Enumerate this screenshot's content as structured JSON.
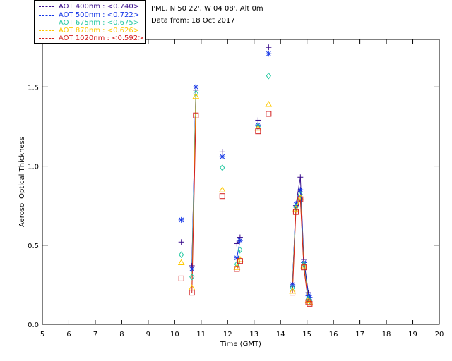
{
  "header": {
    "site_line": "PML, N 50 22', W 04 08', Alt 0m",
    "date_line": "Data from: 18 Oct 2017"
  },
  "legend": [
    {
      "label": "AOT  400nm : <0.740>",
      "color": "#3a0d8c"
    },
    {
      "label": "AOT  500nm : <0.722>",
      "color": "#1436e6"
    },
    {
      "label": "AOT  675nm : <0.675>",
      "color": "#22c8a0"
    },
    {
      "label": "AOT  870nm : <0.626>",
      "color": "#ffc800"
    },
    {
      "label": "AOT 1020nm : <0.592>",
      "color": "#d21e1e"
    }
  ],
  "chart_data": {
    "type": "line",
    "xlabel": "Time (GMT)",
    "ylabel": "Aerosol Optical Thickness",
    "xlim": [
      5,
      20
    ],
    "ylim": [
      0.0,
      1.8
    ],
    "xticks": [
      5,
      6,
      7,
      8,
      9,
      10,
      11,
      12,
      13,
      14,
      15,
      16,
      17,
      18,
      19,
      20
    ],
    "yticks": [
      0.0,
      0.5,
      1.0,
      1.5
    ],
    "ytick_labels": [
      "0.0",
      "0.5",
      "1.0",
      "1.5"
    ],
    "series": [
      {
        "name": "AOT  400nm : <0.740>",
        "marker": "plus",
        "color": "#3a0d8c",
        "points": [
          [
            10.25,
            0.52
          ],
          [
            10.65,
            0.37
          ],
          [
            10.8,
            1.48
          ],
          [
            11.8,
            1.09
          ],
          [
            12.35,
            0.51
          ],
          [
            12.47,
            0.55
          ],
          [
            13.15,
            1.29
          ],
          [
            13.55,
            1.75
          ],
          [
            14.45,
            0.25
          ],
          [
            14.58,
            0.75
          ],
          [
            14.75,
            0.93
          ],
          [
            14.88,
            0.41
          ],
          [
            15.05,
            0.2
          ],
          [
            15.1,
            0.17
          ]
        ],
        "lines": [
          [
            [
              10.65,
              0.37
            ],
            [
              10.8,
              1.48
            ]
          ],
          [
            [
              12.35,
              0.51
            ],
            [
              12.47,
              0.55
            ]
          ],
          [
            [
              14.45,
              0.25
            ],
            [
              14.58,
              0.75
            ],
            [
              14.75,
              0.93
            ],
            [
              14.88,
              0.41
            ],
            [
              15.05,
              0.2
            ],
            [
              15.1,
              0.17
            ]
          ]
        ]
      },
      {
        "name": "AOT  500nm : <0.722>",
        "marker": "asterisk",
        "color": "#1436e6",
        "points": [
          [
            10.25,
            0.66
          ],
          [
            10.65,
            0.35
          ],
          [
            10.8,
            1.5
          ],
          [
            11.8,
            1.06
          ],
          [
            12.35,
            0.42
          ],
          [
            12.47,
            0.53
          ],
          [
            13.15,
            1.26
          ],
          [
            13.55,
            1.71
          ],
          [
            14.45,
            0.25
          ],
          [
            14.58,
            0.76
          ],
          [
            14.75,
            0.85
          ],
          [
            14.88,
            0.39
          ],
          [
            15.05,
            0.18
          ],
          [
            15.1,
            0.17
          ]
        ],
        "lines": [
          [
            [
              10.65,
              0.35
            ],
            [
              10.8,
              1.5
            ]
          ],
          [
            [
              12.35,
              0.42
            ],
            [
              12.47,
              0.53
            ]
          ],
          [
            [
              14.45,
              0.25
            ],
            [
              14.58,
              0.76
            ],
            [
              14.75,
              0.85
            ],
            [
              14.88,
              0.39
            ],
            [
              15.05,
              0.18
            ],
            [
              15.1,
              0.17
            ]
          ]
        ]
      },
      {
        "name": "AOT  675nm : <0.675>",
        "marker": "diamond",
        "color": "#22c8a0",
        "points": [
          [
            10.25,
            0.44
          ],
          [
            10.65,
            0.3
          ],
          [
            10.8,
            1.46
          ],
          [
            11.8,
            0.99
          ],
          [
            12.35,
            0.38
          ],
          [
            12.47,
            0.47
          ],
          [
            13.15,
            1.25
          ],
          [
            13.55,
            1.57
          ],
          [
            14.45,
            0.23
          ],
          [
            14.58,
            0.74
          ],
          [
            14.75,
            0.82
          ],
          [
            14.88,
            0.38
          ],
          [
            15.05,
            0.16
          ],
          [
            15.1,
            0.15
          ]
        ],
        "lines": [
          [
            [
              10.65,
              0.3
            ],
            [
              10.8,
              1.46
            ]
          ],
          [
            [
              12.35,
              0.38
            ],
            [
              12.47,
              0.47
            ]
          ],
          [
            [
              14.45,
              0.23
            ],
            [
              14.58,
              0.74
            ],
            [
              14.75,
              0.82
            ],
            [
              14.88,
              0.38
            ],
            [
              15.05,
              0.16
            ],
            [
              15.1,
              0.15
            ]
          ]
        ]
      },
      {
        "name": "AOT  870nm : <0.626>",
        "marker": "triangle",
        "color": "#ffc800",
        "points": [
          [
            10.25,
            0.39
          ],
          [
            10.65,
            0.23
          ],
          [
            10.8,
            1.44
          ],
          [
            11.8,
            0.85
          ],
          [
            12.35,
            0.36
          ],
          [
            12.47,
            0.41
          ],
          [
            13.15,
            1.24
          ],
          [
            13.55,
            1.39
          ],
          [
            14.45,
            0.21
          ],
          [
            14.58,
            0.73
          ],
          [
            14.75,
            0.8
          ],
          [
            14.88,
            0.37
          ],
          [
            15.05,
            0.15
          ],
          [
            15.1,
            0.14
          ]
        ],
        "lines": [
          [
            [
              10.65,
              0.23
            ],
            [
              10.8,
              1.44
            ]
          ],
          [
            [
              12.35,
              0.36
            ],
            [
              12.47,
              0.41
            ]
          ],
          [
            [
              14.45,
              0.21
            ],
            [
              14.58,
              0.73
            ],
            [
              14.75,
              0.8
            ],
            [
              14.88,
              0.37
            ],
            [
              15.05,
              0.15
            ],
            [
              15.1,
              0.14
            ]
          ]
        ]
      },
      {
        "name": "AOT 1020nm : <0.592>",
        "marker": "square",
        "color": "#d21e1e",
        "points": [
          [
            10.25,
            0.29
          ],
          [
            10.65,
            0.2
          ],
          [
            10.8,
            1.32
          ],
          [
            11.8,
            0.81
          ],
          [
            12.35,
            0.35
          ],
          [
            12.47,
            0.4
          ],
          [
            13.15,
            1.22
          ],
          [
            13.55,
            1.33
          ],
          [
            14.45,
            0.2
          ],
          [
            14.58,
            0.71
          ],
          [
            14.75,
            0.79
          ],
          [
            14.88,
            0.36
          ],
          [
            15.05,
            0.14
          ],
          [
            15.1,
            0.13
          ]
        ],
        "lines": [
          [
            [
              10.65,
              0.2
            ],
            [
              10.8,
              1.32
            ]
          ],
          [
            [
              12.35,
              0.35
            ],
            [
              12.47,
              0.4
            ]
          ],
          [
            [
              14.45,
              0.2
            ],
            [
              14.58,
              0.71
            ],
            [
              14.75,
              0.79
            ],
            [
              14.88,
              0.36
            ],
            [
              15.05,
              0.14
            ],
            [
              15.1,
              0.13
            ]
          ]
        ]
      }
    ]
  }
}
